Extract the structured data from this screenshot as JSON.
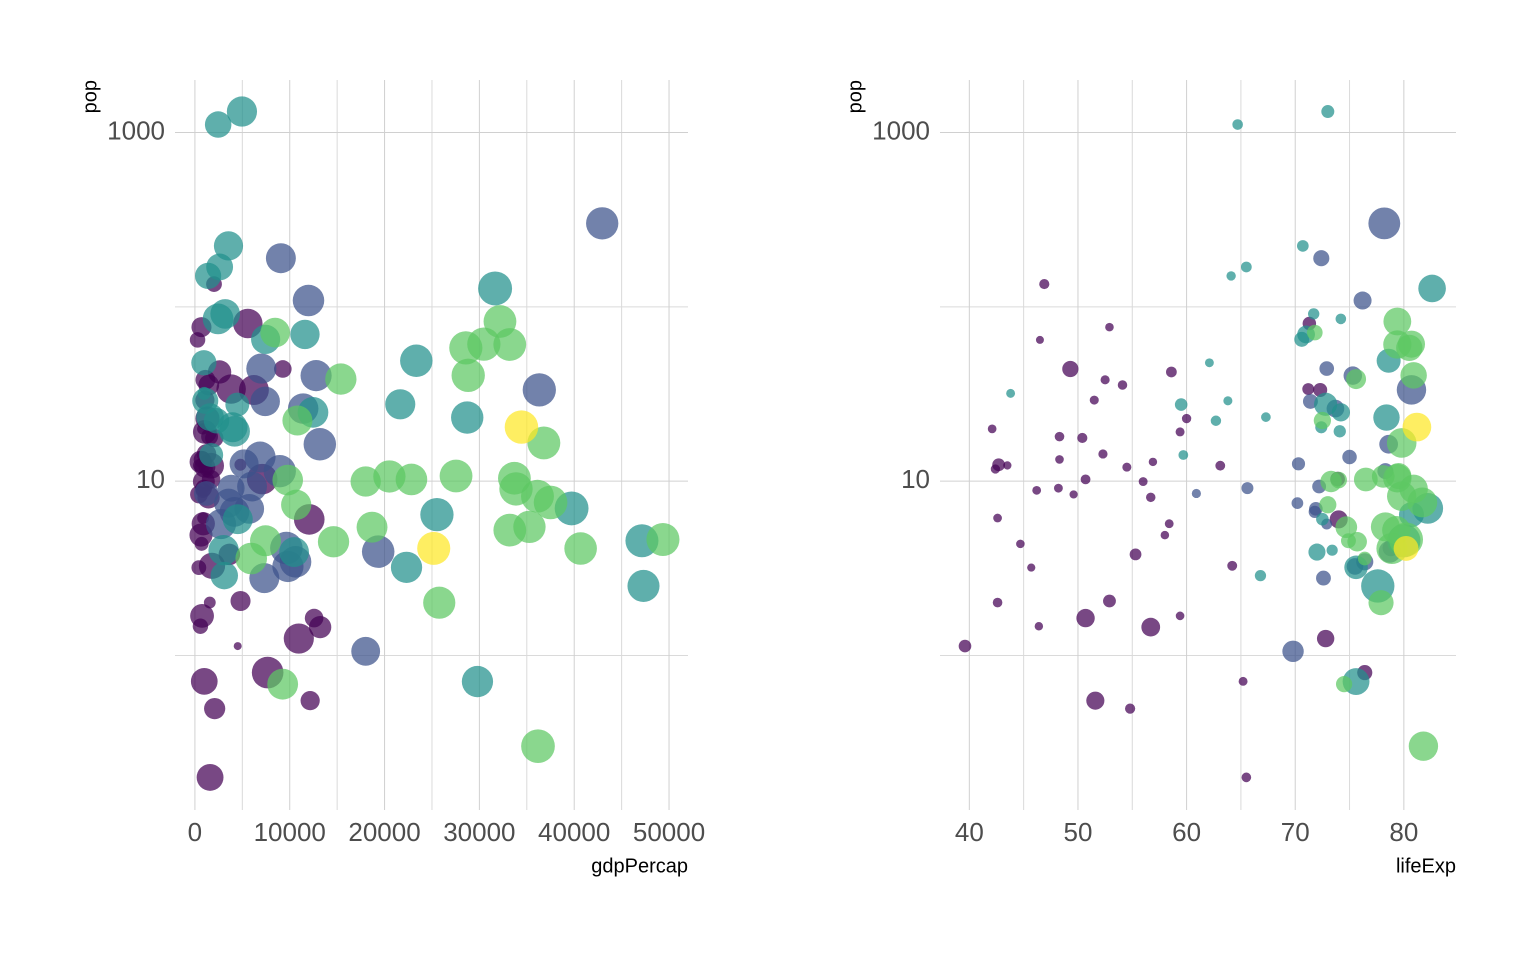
{
  "chart_data": [
    {
      "type": "scatter",
      "xlabel": "gdpPercap",
      "ylabel": "pop",
      "log_y": true,
      "grid": true,
      "xlim": [
        -2100,
        52000
      ],
      "ylim": [
        0.13,
        2000
      ],
      "xticks": [
        0,
        10000,
        20000,
        30000,
        40000,
        50000
      ],
      "minor_xticks": [
        5000,
        15000,
        25000,
        35000,
        45000
      ],
      "yticks": [
        10,
        1000
      ],
      "minor_yticks": [
        1,
        100
      ],
      "series": [
        {
          "color": "#440154",
          "x": [
            6223,
            4797,
            1441,
            12570,
            1217,
            430,
            2042,
            706,
            1704,
            986,
            278,
            3633,
            1545,
            2082,
            5581,
            12154,
            641,
            691,
            13206,
            753,
            1328,
            943,
            579,
            1463,
            1569,
            415,
            12058,
            1045,
            759,
            1043,
            1803,
            10957,
            3820,
            824,
            4811,
            620,
            2014,
            7670,
            863,
            1598,
            1712,
            863,
            926,
            9270,
            2602,
            4513,
            1107,
            883,
            7093,
            1056,
            1271,
            470
          ],
          "values": [
            33.333,
            12.42,
            8.078,
            1.639,
            14.326,
            8.391,
            17.696,
            4.369,
            10.239,
            0.711,
            64.607,
            3.801,
            18.013,
            0.496,
            80.265,
            0.551,
            4.907,
            76.512,
            1.455,
            1.688,
            22.873,
            9.948,
            1.472,
            35.61,
            2.013,
            3.194,
            6.037,
            19.168,
            13.327,
            12.032,
            3.27,
            1.251,
            33.757,
            19.952,
            2.055,
            12.895,
            135.031,
            0.798,
            8.861,
            0.2,
            12.267,
            6.145,
            9.119,
            43.998,
            42.293,
            1.133,
            38.14,
            5.702,
            10.276,
            29.17,
            11.746,
            12.311
          ],
          "sizes": [
            72.3,
            42.7,
            56.7,
            50.7,
            52.3,
            49.6,
            50.4,
            44.7,
            50.7,
            65.2,
            46.5,
            55.3,
            48.3,
            54.8,
            71.3,
            51.6,
            58.0,
            52.9,
            56.7,
            59.4,
            60.0,
            56.0,
            46.4,
            54.1,
            42.6,
            45.7,
            74.0,
            59.4,
            48.3,
            54.5,
            64.2,
            72.8,
            71.2,
            42.1,
            52.9,
            56.9,
            46.9,
            76.4,
            46.2,
            65.5,
            63.1,
            42.6,
            48.2,
            49.3,
            58.6,
            39.6,
            52.5,
            58.4,
            73.9,
            51.5,
            42.4,
            43.5
          ]
        },
        {
          "color": "#3b528b",
          "x": [
            12779,
            3822,
            9066,
            36319,
            13172,
            7007,
            9645,
            8948,
            6025,
            6873,
            5728,
            5186,
            1202,
            3548,
            7321,
            11978,
            2749,
            9809,
            4173,
            7409,
            19329,
            18009,
            42952,
            10611,
            11416
          ],
          "values": [
            40.302,
            9.119,
            190.011,
            33.39,
            16.285,
            44.228,
            4.134,
            11.417,
            9.32,
            13.756,
            6.94,
            12.573,
            8.503,
            7.484,
            2.78,
            108.701,
            5.675,
            3.242,
            6.667,
            28.675,
            3.942,
            1.057,
            301.14,
            3.447,
            26.085
          ],
          "sizes": [
            75.3,
            65.6,
            72.4,
            80.7,
            78.6,
            72.9,
            78.8,
            78.3,
            72.2,
            75.0,
            71.9,
            70.3,
            60.9,
            70.2,
            72.6,
            76.2,
            72.9,
            75.5,
            71.8,
            71.4,
            78.7,
            69.8,
            78.2,
            76.4,
            73.7
          ]
        },
        {
          "color": "#21908c",
          "x": [
            975,
            29796,
            1391,
            1714,
            4959,
            39725,
            2452,
            3541,
            11606,
            4471,
            25523,
            31656,
            4519,
            1593,
            23348,
            47307,
            10461,
            12452,
            3096,
            944,
            1091,
            22316,
            2606,
            3190,
            21655,
            47143,
            3970,
            4185,
            28718,
            7458,
            2442,
            3025,
            2281
          ],
          "values": [
            31.89,
            0.709,
            150.448,
            14.132,
            1318.683,
            6.98,
            1110.396,
            223.547,
            69.454,
            27.5,
            6.427,
            127.468,
            6.053,
            23.302,
            49.045,
            2.506,
            3.921,
            24.821,
            2.874,
            47.762,
            28.902,
            3.205,
            169.271,
            91.077,
            27.601,
            4.553,
            20.378,
            19.315,
            23.174,
            65.068,
            85.262,
            4.018,
            22.212
          ],
          "sizes": [
            43.8,
            75.6,
            64.1,
            59.7,
            73.0,
            82.2,
            64.7,
            70.7,
            71.0,
            59.5,
            80.7,
            82.6,
            72.5,
            67.3,
            78.6,
            77.6,
            72.0,
            74.2,
            66.8,
            62.1,
            63.8,
            75.6,
            65.5,
            71.7,
            72.8,
            80.0,
            72.4,
            74.1,
            78.4,
            70.6,
            74.2,
            73.4,
            62.7
          ]
        },
        {
          "color": "#5dc863",
          "x": [
            5937,
            36126,
            33693,
            7446,
            10681,
            14619,
            22833,
            35278,
            33207,
            30470,
            32170,
            27538,
            18009,
            36181,
            40676,
            28570,
            9254,
            36798,
            49357,
            15390,
            20510,
            10808,
            9787,
            18678,
            25768,
            28821,
            33860,
            37506,
            8458,
            33203
          ],
          "values": [
            3.601,
            8.2,
            10.392,
            4.552,
            7.323,
            4.493,
            10.229,
            5.468,
            5.238,
            61.084,
            82.401,
            10.706,
            9.956,
            0.302,
            4.109,
            58.148,
            0.685,
            16.571,
            4.628,
            38.518,
            10.643,
            22.276,
            10.15,
            5.448,
            2.009,
            40.448,
            9.031,
            7.555,
            71.159,
            60.776
          ],
          "sizes": [
            76.4,
            79.8,
            79.4,
            74.9,
            73.0,
            75.7,
            76.5,
            78.3,
            79.3,
            80.7,
            79.4,
            79.5,
            73.3,
            81.8,
            78.9,
            80.5,
            74.5,
            79.8,
            80.2,
            75.6,
            78.1,
            72.5,
            74.0,
            74.7,
            77.9,
            80.9,
            80.9,
            81.7,
            71.8,
            79.4
          ]
        },
        {
          "color": "#fde725",
          "x": [
            34435,
            25185
          ],
          "values": [
            20.434,
            4.116
          ],
          "sizes": [
            81.2,
            80.2
          ]
        }
      ]
    },
    {
      "type": "scatter",
      "xlabel": "lifeExp",
      "ylabel": "pop",
      "log_y": true,
      "grid": true,
      "xlim": [
        37.3,
        84.8
      ],
      "ylim": [
        0.13,
        2000
      ],
      "xticks": [
        40,
        50,
        60,
        70,
        80
      ],
      "minor_xticks": [
        45,
        55,
        65,
        75
      ],
      "yticks": [
        10,
        1000
      ],
      "minor_yticks": [
        1,
        100
      ],
      "series": [
        {
          "color": "#440154",
          "x": [
            72.3,
            42.7,
            56.7,
            50.7,
            52.3,
            49.6,
            50.4,
            44.7,
            50.7,
            65.2,
            46.5,
            55.3,
            48.3,
            54.8,
            71.3,
            51.6,
            58.0,
            52.9,
            56.7,
            59.4,
            60.0,
            56.0,
            46.4,
            54.1,
            42.6,
            45.7,
            74.0,
            59.4,
            48.3,
            54.5,
            64.2,
            72.8,
            71.2,
            42.1,
            52.9,
            56.9,
            46.9,
            76.4,
            46.2,
            65.5,
            63.1,
            42.6,
            48.2,
            49.3,
            58.6,
            39.6,
            52.5,
            58.4,
            73.9,
            51.5,
            42.4,
            43.5
          ],
          "values": [
            33.333,
            12.42,
            8.078,
            1.639,
            14.326,
            8.391,
            17.696,
            4.369,
            10.239,
            0.711,
            64.607,
            3.801,
            18.013,
            0.496,
            80.265,
            0.551,
            4.907,
            76.512,
            1.455,
            1.688,
            22.873,
            9.948,
            1.472,
            35.61,
            2.013,
            3.194,
            6.037,
            19.168,
            13.327,
            12.032,
            3.27,
            1.251,
            33.757,
            19.952,
            2.055,
            12.895,
            135.031,
            0.798,
            8.861,
            0.2,
            12.267,
            6.145,
            9.119,
            43.998,
            42.293,
            1.133,
            38.14,
            5.702,
            10.276,
            29.17,
            11.746,
            12.311
          ],
          "sizes": [
            6223,
            4797,
            1441,
            12570,
            1217,
            430,
            2042,
            706,
            1704,
            986,
            278,
            3633,
            1545,
            2082,
            5581,
            12154,
            641,
            691,
            13206,
            753,
            1328,
            943,
            579,
            1463,
            1569,
            415,
            12058,
            1045,
            759,
            1043,
            1803,
            10957,
            3820,
            824,
            4811,
            620,
            2014,
            7670,
            863,
            1598,
            1712,
            863,
            926,
            9270,
            2602,
            4513,
            1107,
            883,
            7093,
            1056,
            1271,
            470
          ]
        },
        {
          "color": "#3b528b",
          "x": [
            75.3,
            65.6,
            72.4,
            80.7,
            78.6,
            72.9,
            78.8,
            78.3,
            72.2,
            75.0,
            71.9,
            70.3,
            60.9,
            70.2,
            72.6,
            76.2,
            72.9,
            75.5,
            71.8,
            71.4,
            78.7,
            69.8,
            78.2,
            76.4,
            73.7
          ],
          "values": [
            40.302,
            9.119,
            190.011,
            33.39,
            16.285,
            44.228,
            4.134,
            11.417,
            9.32,
            13.756,
            6.94,
            12.573,
            8.503,
            7.484,
            2.78,
            108.701,
            5.675,
            3.242,
            6.667,
            28.675,
            3.942,
            1.057,
            301.14,
            3.447,
            26.085
          ],
          "sizes": [
            12779,
            3822,
            9066,
            36319,
            13172,
            7007,
            9645,
            8948,
            6025,
            6873,
            5728,
            5186,
            1202,
            3548,
            7321,
            11978,
            2749,
            9809,
            4173,
            7409,
            19329,
            18009,
            42952,
            10611,
            11416
          ]
        },
        {
          "color": "#21908c",
          "x": [
            43.8,
            75.6,
            64.1,
            59.7,
            73.0,
            82.2,
            64.7,
            70.7,
            71.0,
            59.5,
            80.7,
            82.6,
            72.5,
            67.3,
            78.6,
            77.6,
            72.0,
            74.2,
            66.8,
            62.1,
            63.8,
            75.6,
            65.5,
            71.7,
            72.8,
            80.0,
            72.4,
            74.1,
            78.4,
            70.6,
            74.2,
            73.4,
            62.7
          ],
          "values": [
            31.89,
            0.709,
            150.448,
            14.132,
            1318.683,
            6.98,
            1110.396,
            223.547,
            69.454,
            27.5,
            6.427,
            127.468,
            6.053,
            23.302,
            49.045,
            2.506,
            3.921,
            24.821,
            2.874,
            47.762,
            28.902,
            3.205,
            169.271,
            91.077,
            27.601,
            4.553,
            20.378,
            19.315,
            23.174,
            65.068,
            85.262,
            4.018,
            22.212
          ],
          "sizes": [
            975,
            29796,
            1391,
            1714,
            4959,
            39725,
            2452,
            3541,
            11606,
            4471,
            25523,
            31656,
            4519,
            1593,
            23348,
            47307,
            10461,
            12452,
            3096,
            944,
            1091,
            22316,
            2606,
            3190,
            21655,
            47143,
            3970,
            4185,
            28718,
            7458,
            2442,
            3025,
            2281
          ]
        },
        {
          "color": "#5dc863",
          "x": [
            76.4,
            79.8,
            79.4,
            74.9,
            73.0,
            75.7,
            76.5,
            78.3,
            79.3,
            80.7,
            79.4,
            79.5,
            73.3,
            81.8,
            78.9,
            80.5,
            74.5,
            79.8,
            80.2,
            75.6,
            78.1,
            72.5,
            74.0,
            74.7,
            77.9,
            80.9,
            80.9,
            81.7,
            71.8,
            79.4
          ],
          "values": [
            3.601,
            8.2,
            10.392,
            4.552,
            7.323,
            4.493,
            10.229,
            5.468,
            5.238,
            61.084,
            82.401,
            10.706,
            9.956,
            0.302,
            4.109,
            58.148,
            0.685,
            16.571,
            4.628,
            38.518,
            10.643,
            22.276,
            10.15,
            5.448,
            2.009,
            40.448,
            9.031,
            7.555,
            71.159,
            60.776
          ],
          "sizes": [
            5937,
            36126,
            33693,
            7446,
            10681,
            14619,
            22833,
            35278,
            33207,
            30470,
            32170,
            27538,
            18009,
            36181,
            40676,
            28570,
            9254,
            36798,
            49357,
            15390,
            20510,
            10808,
            9787,
            18678,
            25768,
            28821,
            33860,
            37506,
            8458,
            33203
          ]
        },
        {
          "color": "#fde725",
          "x": [
            81.2,
            80.2
          ],
          "values": [
            20.434,
            4.116
          ],
          "sizes": [
            34435,
            25185
          ]
        }
      ]
    }
  ]
}
